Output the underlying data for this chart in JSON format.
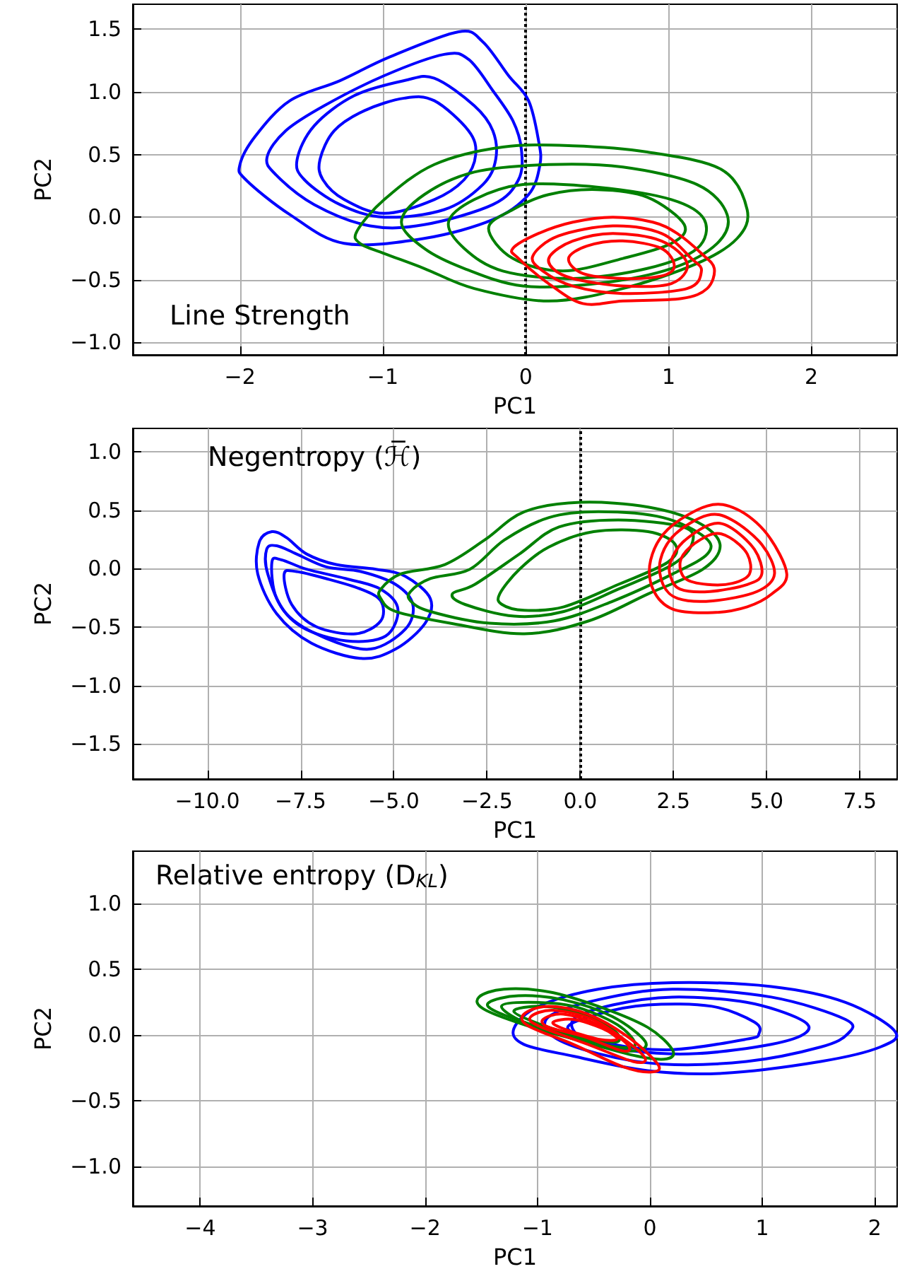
{
  "chart_data": [
    {
      "type": "line",
      "xlabel": "PC1",
      "ylabel": "PC2",
      "annotations": [
        "Line Strength"
      ],
      "xlim": [
        -2.75,
        2.6
      ],
      "ylim": [
        -1.1,
        1.7
      ],
      "grid": true,
      "xticks": [
        {
          "value": -2,
          "label": "−2"
        },
        {
          "value": -1,
          "label": "−1"
        },
        {
          "value": 0,
          "label": "0"
        },
        {
          "value": 1,
          "label": "1"
        },
        {
          "value": 2,
          "label": "2"
        }
      ],
      "yticks": [
        {
          "value": -1,
          "label": "−1.0"
        },
        {
          "value": -0.5,
          "label": "−0.5"
        },
        {
          "value": 0,
          "label": "0.0"
        },
        {
          "value": 0.5,
          "label": "0.5"
        },
        {
          "value": 1,
          "label": "1.0"
        },
        {
          "value": 1.5,
          "label": "1.5"
        }
      ],
      "ref_lines": [
        {
          "axis": "x",
          "value": 0,
          "color": "#000000",
          "line_style": "dotted"
        }
      ]
    },
    {
      "type": "line",
      "xlabel": "PC1",
      "ylabel": "PC2",
      "annotations": [
        "Negentropy (ℋ̅)"
      ],
      "xlim": [
        -12,
        8.5
      ],
      "ylim": [
        -1.8,
        1.2
      ],
      "grid": true,
      "xticks": [
        {
          "value": -10,
          "label": "−10.0"
        },
        {
          "value": -7.5,
          "label": "−7.5"
        },
        {
          "value": -5,
          "label": "−5.0"
        },
        {
          "value": -2.5,
          "label": "−2.5"
        },
        {
          "value": 0,
          "label": "0.0"
        },
        {
          "value": 2.5,
          "label": "2.5"
        },
        {
          "value": 5,
          "label": "5.0"
        },
        {
          "value": 7.5,
          "label": "7.5"
        }
      ],
      "yticks": [
        {
          "value": -1.5,
          "label": "−1.5"
        },
        {
          "value": -1,
          "label": "−1.0"
        },
        {
          "value": -0.5,
          "label": "−0.5"
        },
        {
          "value": 0,
          "label": "0.0"
        },
        {
          "value": 0.5,
          "label": "0.5"
        },
        {
          "value": 1,
          "label": "1.0"
        }
      ],
      "ref_lines": [
        {
          "axis": "x",
          "value": 0,
          "color": "#000000",
          "line_style": "dotted"
        }
      ]
    },
    {
      "type": "line",
      "xlabel": "PC1",
      "ylabel": "PC2",
      "annotations": [
        "Relative entropy (D$_{KL}$)"
      ],
      "xlim": [
        -4.6,
        2.2
      ],
      "ylim": [
        -1.3,
        1.4
      ],
      "grid": true,
      "xticks": [
        {
          "value": -4,
          "label": "−4"
        },
        {
          "value": -3,
          "label": "−3"
        },
        {
          "value": -2,
          "label": "−2"
        },
        {
          "value": -1,
          "label": "−1"
        },
        {
          "value": 0,
          "label": "0"
        },
        {
          "value": 1,
          "label": "1"
        },
        {
          "value": 2,
          "label": "2"
        }
      ],
      "yticks": [
        {
          "value": -1,
          "label": "−1.0"
        },
        {
          "value": -0.5,
          "label": "−0.5"
        },
        {
          "value": 0,
          "label": "0.0"
        },
        {
          "value": 0.5,
          "label": "0.5"
        },
        {
          "value": 1,
          "label": "1.0"
        }
      ]
    }
  ]
}
